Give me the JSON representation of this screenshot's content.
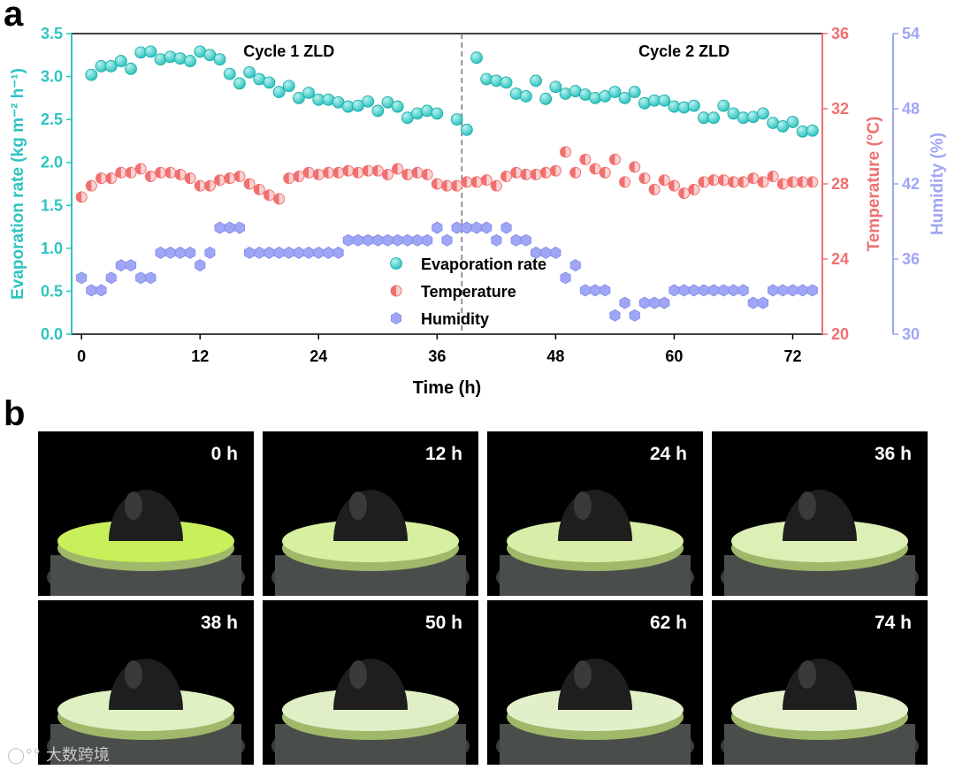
{
  "panel_a_label": "a",
  "panel_b_label": "b",
  "colors": {
    "evaporation": "#2ec4c0",
    "temperature": "#f07070",
    "humidity": "#9fa6f5",
    "divider": "#777777"
  },
  "chart_data": {
    "type": "scatter",
    "xlabel": "Time (h)",
    "x_ticks": [
      0,
      12,
      24,
      36,
      48,
      60,
      72
    ],
    "xlim": [
      -1,
      75
    ],
    "divider_x": 38.5,
    "annotations": [
      {
        "text": "Cycle 1 ZLD",
        "x": 21
      },
      {
        "text": "Cycle 2 ZLD",
        "x": 61
      }
    ],
    "axes": {
      "left": {
        "label": "Evaporation rate (kg m⁻² h⁻¹)",
        "ylim": [
          0,
          3.5
        ],
        "ticks": [
          "0.0",
          "0.5",
          "1.0",
          "1.5",
          "2.0",
          "2.5",
          "3.0",
          "3.5"
        ]
      },
      "right1": {
        "label": "Temperature (°C)",
        "ylim": [
          20,
          36
        ],
        "ticks": [
          "20",
          "24",
          "28",
          "32",
          "36"
        ]
      },
      "right2": {
        "label": "Humidity (%)",
        "ylim": [
          30,
          54
        ],
        "ticks": [
          "30",
          "36",
          "42",
          "48",
          "54"
        ]
      }
    },
    "legend": [
      "Evaporation rate",
      "Temperature",
      "Humidity"
    ],
    "series": [
      {
        "name": "Evaporation rate",
        "axis": "left",
        "x": [
          1,
          2,
          3,
          4,
          5,
          6,
          7,
          8,
          9,
          10,
          11,
          12,
          13,
          14,
          15,
          16,
          17,
          18,
          19,
          20,
          21,
          22,
          23,
          24,
          25,
          26,
          27,
          28,
          29,
          30,
          31,
          32,
          33,
          34,
          35,
          36,
          38,
          39,
          40,
          41,
          42,
          43,
          44,
          45,
          46,
          47,
          48,
          49,
          50,
          51,
          52,
          53,
          54,
          55,
          56,
          57,
          58,
          59,
          60,
          61,
          62,
          63,
          64,
          65,
          66,
          67,
          68,
          69,
          70,
          71,
          72,
          73,
          74
        ],
        "values": [
          3.02,
          3.12,
          3.12,
          3.18,
          3.09,
          3.28,
          3.29,
          3.2,
          3.23,
          3.21,
          3.18,
          3.29,
          3.25,
          3.2,
          3.03,
          2.92,
          3.05,
          2.97,
          2.93,
          2.82,
          2.89,
          2.75,
          2.81,
          2.73,
          2.73,
          2.7,
          2.65,
          2.66,
          2.71,
          2.6,
          2.7,
          2.65,
          2.52,
          2.57,
          2.6,
          2.57,
          2.5,
          2.38,
          3.22,
          2.97,
          2.95,
          2.93,
          2.8,
          2.77,
          2.95,
          2.74,
          2.88,
          2.8,
          2.83,
          2.79,
          2.75,
          2.77,
          2.82,
          2.75,
          2.82,
          2.69,
          2.72,
          2.72,
          2.65,
          2.64,
          2.66,
          2.52,
          2.52,
          2.66,
          2.57,
          2.52,
          2.53,
          2.57,
          2.46,
          2.42,
          2.47,
          2.36,
          2.37
        ]
      },
      {
        "name": "Temperature",
        "axis": "right1",
        "x": [
          0,
          1,
          2,
          3,
          4,
          5,
          6,
          7,
          8,
          9,
          10,
          11,
          12,
          13,
          14,
          15,
          16,
          17,
          18,
          19,
          20,
          21,
          22,
          23,
          24,
          25,
          26,
          27,
          28,
          29,
          30,
          31,
          32,
          33,
          34,
          35,
          36,
          37,
          38,
          39,
          40,
          41,
          42,
          43,
          44,
          45,
          46,
          47,
          48,
          49,
          50,
          51,
          52,
          53,
          54,
          55,
          56,
          57,
          58,
          59,
          60,
          61,
          62,
          63,
          64,
          65,
          66,
          67,
          68,
          69,
          70,
          71,
          72,
          73,
          74
        ],
        "values": [
          27.3,
          27.9,
          28.3,
          28.3,
          28.6,
          28.6,
          28.8,
          28.4,
          28.6,
          28.6,
          28.5,
          28.3,
          27.9,
          27.9,
          28.2,
          28.3,
          28.4,
          28.0,
          27.7,
          27.4,
          27.2,
          28.3,
          28.4,
          28.6,
          28.5,
          28.6,
          28.6,
          28.7,
          28.6,
          28.7,
          28.7,
          28.5,
          28.8,
          28.5,
          28.6,
          28.5,
          28.0,
          27.9,
          27.9,
          28.1,
          28.1,
          28.2,
          27.9,
          28.4,
          28.6,
          28.5,
          28.5,
          28.6,
          28.7,
          29.7,
          28.6,
          29.3,
          28.8,
          28.6,
          29.3,
          28.1,
          28.9,
          28.3,
          27.7,
          28.2,
          27.9,
          27.5,
          27.7,
          28.1,
          28.2,
          28.2,
          28.1,
          28.1,
          28.3,
          28.1,
          28.4,
          28.0,
          28.1,
          28.1,
          28.1
        ]
      },
      {
        "name": "Humidity",
        "axis": "right2",
        "x": [
          0,
          1,
          2,
          3,
          4,
          5,
          6,
          7,
          8,
          9,
          10,
          11,
          12,
          13,
          14,
          15,
          16,
          17,
          18,
          19,
          20,
          21,
          22,
          23,
          24,
          25,
          26,
          27,
          28,
          29,
          30,
          31,
          32,
          33,
          34,
          35,
          36,
          37,
          38,
          39,
          40,
          41,
          42,
          43,
          44,
          45,
          46,
          47,
          48,
          49,
          50,
          51,
          52,
          53,
          54,
          55,
          56,
          57,
          58,
          59,
          60,
          61,
          62,
          63,
          64,
          65,
          66,
          67,
          68,
          69,
          70,
          71,
          72,
          73,
          74
        ],
        "values": [
          34.5,
          33.5,
          33.5,
          34.5,
          35.5,
          35.5,
          34.5,
          34.5,
          36.5,
          36.5,
          36.5,
          36.5,
          35.5,
          36.5,
          38.5,
          38.5,
          38.5,
          36.5,
          36.5,
          36.5,
          36.5,
          36.5,
          36.5,
          36.5,
          36.5,
          36.5,
          36.5,
          37.5,
          37.5,
          37.5,
          37.5,
          37.5,
          37.5,
          37.5,
          37.5,
          37.5,
          38.5,
          37.5,
          38.5,
          38.5,
          38.5,
          38.5,
          37.5,
          38.5,
          37.5,
          37.5,
          36.5,
          36.5,
          36.5,
          34.5,
          35.5,
          33.5,
          33.5,
          33.5,
          31.5,
          32.5,
          31.5,
          32.5,
          32.5,
          32.5,
          33.5,
          33.5,
          33.5,
          33.5,
          33.5,
          33.5,
          33.5,
          33.5,
          32.5,
          32.5,
          33.5,
          33.5,
          33.5,
          33.5,
          33.5
        ]
      }
    ]
  },
  "photos": [
    {
      "time": "0 h"
    },
    {
      "time": "12 h"
    },
    {
      "time": "24 h"
    },
    {
      "time": "36 h"
    },
    {
      "time": "38 h"
    },
    {
      "time": "50 h"
    },
    {
      "time": "62 h"
    },
    {
      "time": "74 h"
    }
  ],
  "watermark": "大数跨境"
}
